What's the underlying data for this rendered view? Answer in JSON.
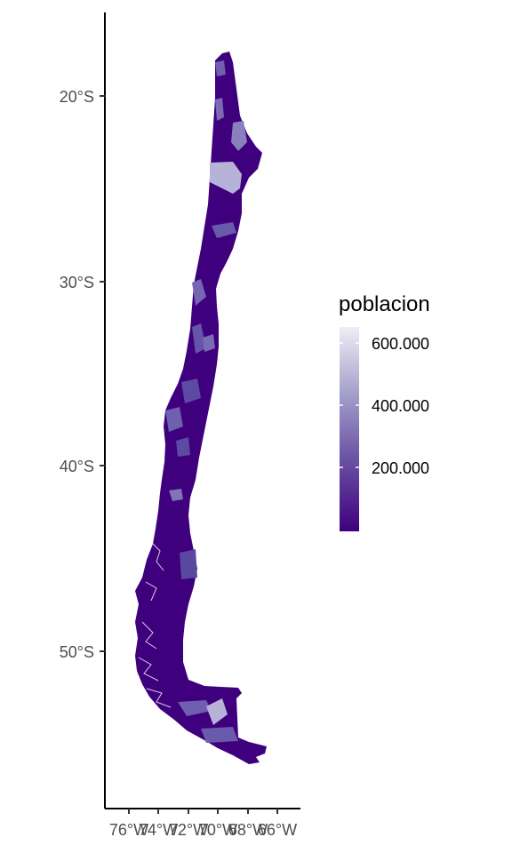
{
  "map": {
    "type": "choropleth",
    "region": "Chile",
    "y_ticks": [
      "20°S",
      "30°S",
      "40°S",
      "50°S"
    ],
    "x_ticks": [
      "76°W",
      "74°W",
      "72°W",
      "70°W",
      "68°W",
      "66°W"
    ],
    "colors": {
      "low": "#3f007d",
      "mid": "#6a51a3",
      "high": "#efedf5",
      "axis": "#000000",
      "tick_text": "#4d4d4d"
    }
  },
  "legend": {
    "title": "poblacion",
    "labels": [
      "600.000",
      "400.000",
      "200.000"
    ],
    "values": [
      600000,
      400000,
      200000
    ],
    "range": [
      0,
      650000
    ]
  }
}
